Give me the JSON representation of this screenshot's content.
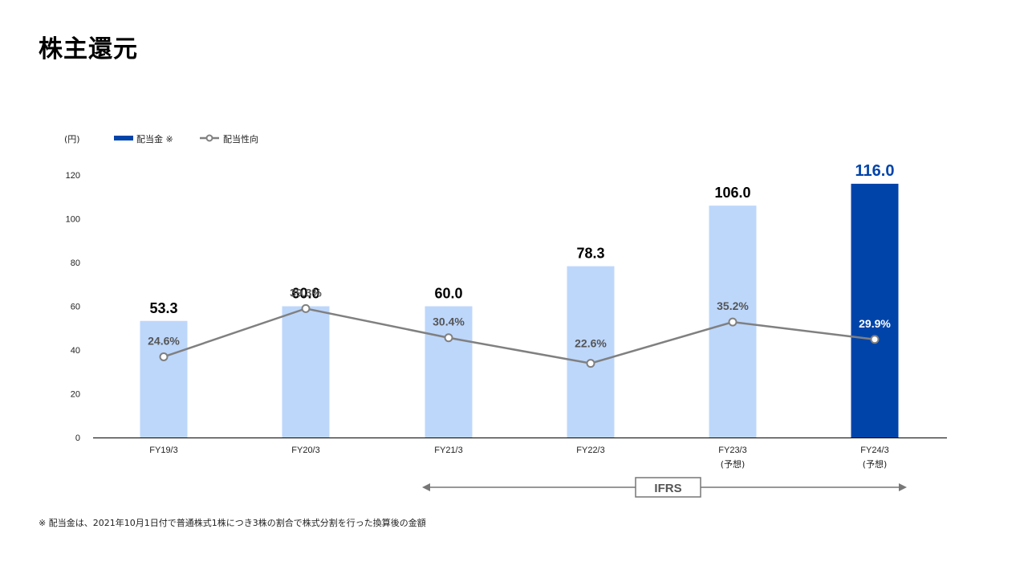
{
  "title": "株主還元",
  "footnote": "※ 配当金は、2021年10月1日付で普通株式1株につき3株の割合で株式分割を行った換算後の金額",
  "chart_data": {
    "type": "bar",
    "unit_label": "(円)",
    "categories": [
      "FY19/3",
      "FY20/3",
      "FY21/3",
      "FY22/3",
      "FY23/3",
      "FY24/3"
    ],
    "category_sublabels": [
      "",
      "",
      "",
      "",
      "(予想)",
      "(予想)"
    ],
    "ylim": [
      0,
      120
    ],
    "yticks": [
      0,
      20,
      40,
      60,
      80,
      100,
      120
    ],
    "grid": false,
    "legend_position": "top-left",
    "series": [
      {
        "name": "配当金 ※",
        "type": "bar",
        "values": [
          53.3,
          60.0,
          60.0,
          78.3,
          106.0,
          116.0
        ],
        "value_labels": [
          "53.3",
          "60.0",
          "60.0",
          "78.3",
          "106.0",
          "116.0"
        ],
        "color": "#bdd7fb",
        "highlight_color": "#0044aa",
        "highlight_index": 5
      },
      {
        "name": "配当性向",
        "type": "line",
        "values": [
          24.6,
          39.3,
          30.4,
          22.6,
          35.2,
          29.9
        ],
        "value_labels": [
          "24.6%",
          "39.3%",
          "30.4%",
          "22.6%",
          "35.2%",
          "29.9%"
        ],
        "color": "#808080"
      }
    ],
    "annotation": {
      "label": "IFRS",
      "from_category": "FY21/3",
      "to_category": "FY24/3"
    }
  }
}
